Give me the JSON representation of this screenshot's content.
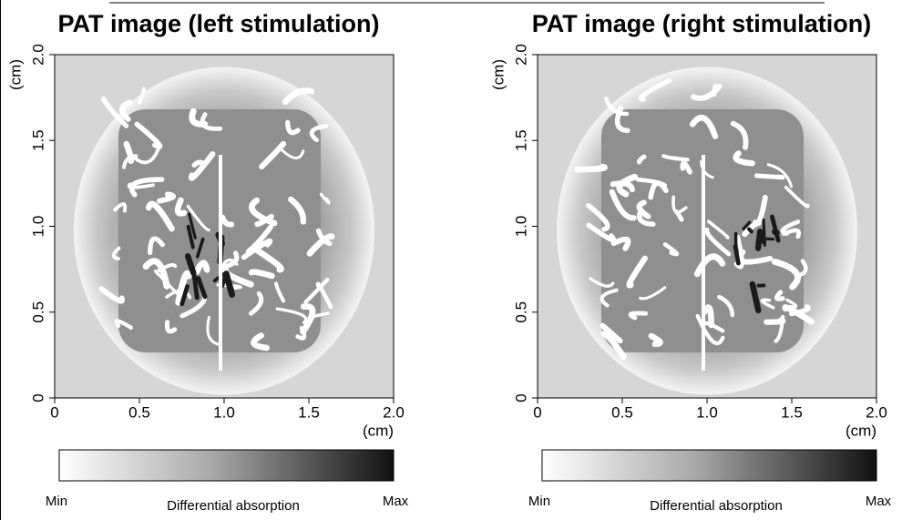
{
  "chart_data": [
    {
      "type": "image",
      "title": "PAT image (left stimulation)",
      "xlim": [
        0,
        2
      ],
      "ylim": [
        0,
        2
      ],
      "xticks": [
        0,
        0.5,
        {
          "value": 1,
          "label": "1.0"
        },
        1.5,
        {
          "value": 2,
          "label": "2.0"
        }
      ],
      "yticks": [
        0,
        0.5,
        {
          "value": 1,
          "label": "1.0"
        },
        1.5,
        {
          "value": 2,
          "label": "2.0"
        }
      ],
      "xlabel": "(cm)",
      "ylabel": "(cm)",
      "colorbar": {
        "label": "Differential absorption",
        "min_label": "Min",
        "max_label": "Max"
      }
    },
    {
      "type": "image",
      "title": "PAT image (right stimulation)",
      "xlim": [
        0,
        2
      ],
      "ylim": [
        0,
        2
      ],
      "xticks": [
        0,
        0.5,
        {
          "value": 1,
          "label": "1.0"
        },
        1.5,
        {
          "value": 2,
          "label": "2.0"
        }
      ],
      "yticks": [
        0,
        0.5,
        {
          "value": 1,
          "label": "1.0"
        },
        1.5,
        {
          "value": 2,
          "label": "2.0"
        }
      ],
      "xlabel": "(cm)",
      "ylabel": "(cm)",
      "colorbar": {
        "label": "Differential absorption",
        "min_label": "Min",
        "max_label": "Max"
      }
    }
  ]
}
